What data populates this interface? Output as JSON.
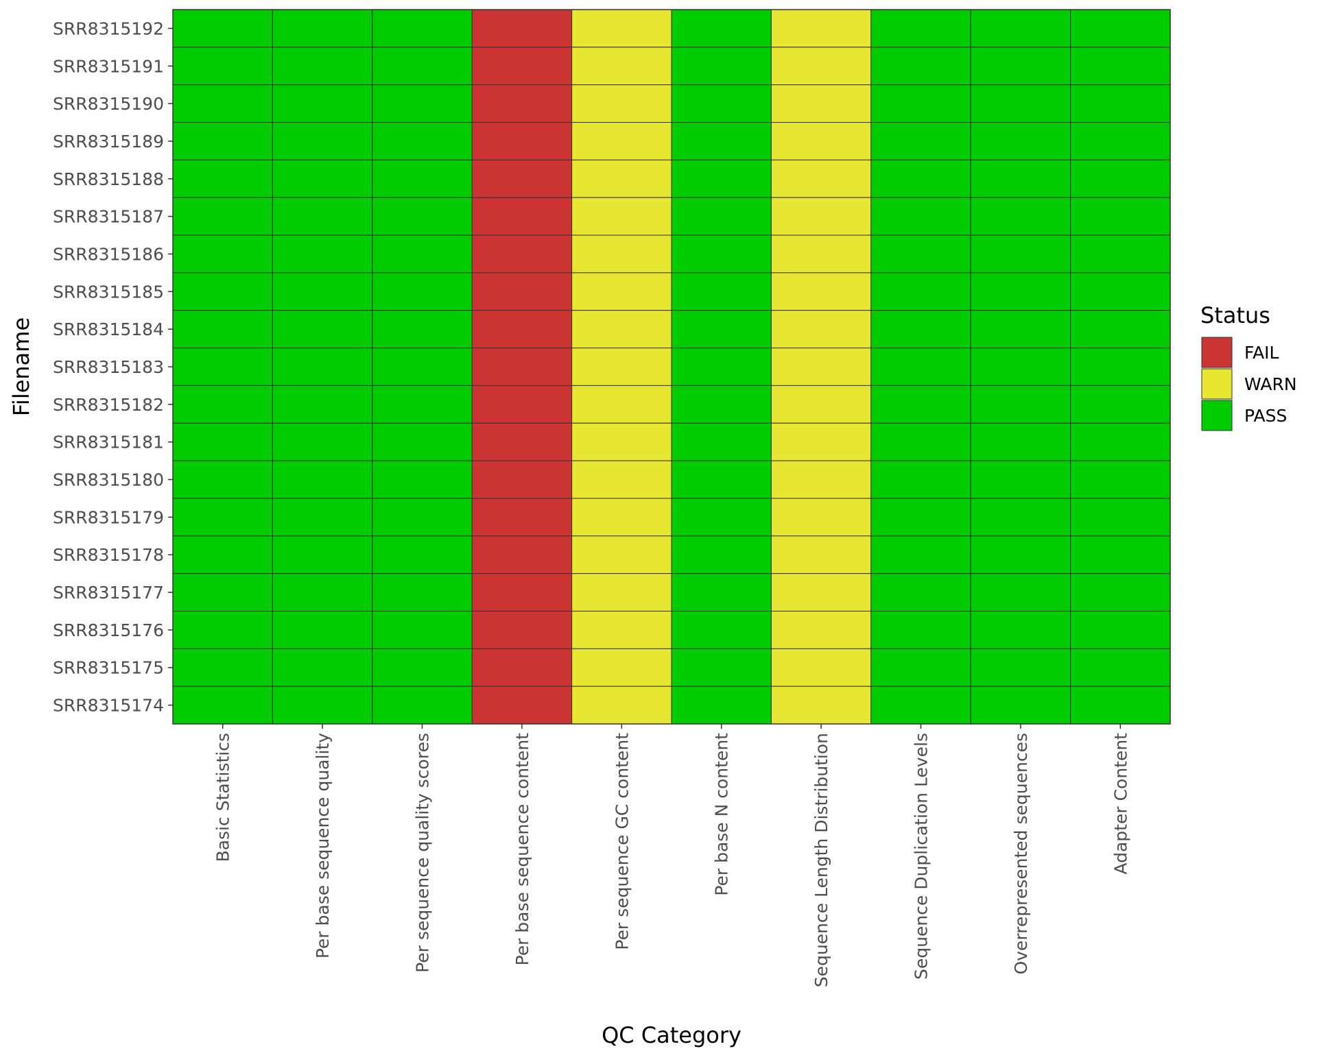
{
  "chart_data": {
    "type": "heatmap",
    "xlabel": "QC Category",
    "ylabel": "Filename",
    "categories_x": [
      "Basic Statistics",
      "Per base sequence quality",
      "Per sequence quality scores",
      "Per base sequence content",
      "Per sequence GC content",
      "Per base N content",
      "Sequence Length Distribution",
      "Sequence Duplication Levels",
      "Overrepresented sequences",
      "Adapter Content"
    ],
    "categories_y": [
      "SRR8315192",
      "SRR8315191",
      "SRR8315190",
      "SRR8315189",
      "SRR8315188",
      "SRR8315187",
      "SRR8315186",
      "SRR8315185",
      "SRR8315184",
      "SRR8315183",
      "SRR8315182",
      "SRR8315181",
      "SRR8315180",
      "SRR8315179",
      "SRR8315178",
      "SRR8315177",
      "SRR8315176",
      "SRR8315175",
      "SRR8315174"
    ],
    "status_by_category": [
      "PASS",
      "PASS",
      "PASS",
      "FAIL",
      "WARN",
      "PASS",
      "WARN",
      "PASS",
      "PASS",
      "PASS"
    ],
    "legend": {
      "title": "Status",
      "position": "right",
      "entries": [
        {
          "label": "FAIL",
          "color": "#cc3333"
        },
        {
          "label": "WARN",
          "color": "#e6e633"
        },
        {
          "label": "PASS",
          "color": "#00cc00"
        }
      ]
    },
    "grid": false,
    "tile_border_color": "#333333"
  }
}
